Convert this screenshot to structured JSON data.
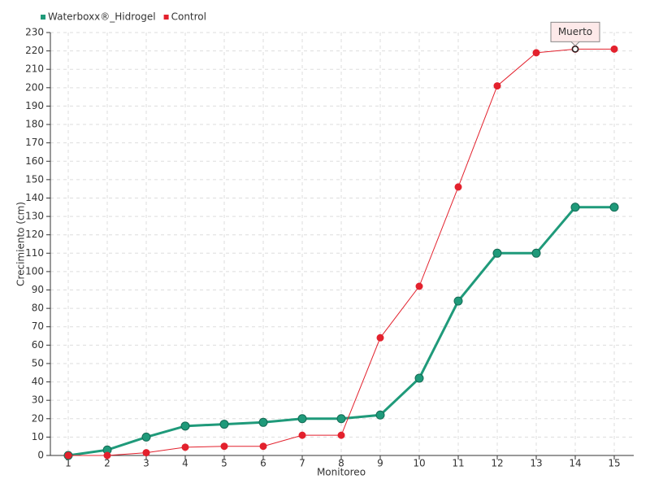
{
  "chart_data": {
    "type": "line",
    "x_label": "Monitoreo",
    "y_label": "Crecimiento (cm)",
    "categories": [
      "1",
      "2",
      "3",
      "4",
      "5",
      "6",
      "7",
      "8",
      "9",
      "10",
      "11",
      "12",
      "13",
      "14",
      "15"
    ],
    "series": [
      {
        "name": "Waterboxx®_Hidrogel",
        "color": "#1f9a7a",
        "values": [
          0,
          3,
          10,
          16,
          17,
          18,
          20,
          20,
          22,
          42,
          84,
          110,
          110,
          135,
          135
        ]
      },
      {
        "name": "Control",
        "color": "#e3212d",
        "values": [
          0,
          0,
          1.5,
          4.5,
          5,
          5,
          11,
          11,
          64,
          92,
          146,
          201,
          219,
          221,
          221
        ]
      }
    ],
    "ylim": [
      0,
      230
    ],
    "yticks": [
      0,
      10,
      20,
      30,
      40,
      50,
      60,
      70,
      80,
      90,
      100,
      110,
      120,
      130,
      140,
      150,
      160,
      170,
      180,
      190,
      200,
      210,
      220,
      230
    ],
    "grid": true,
    "annotations": [
      {
        "text": "Muerto",
        "category": "14",
        "series": "Control"
      }
    ]
  }
}
